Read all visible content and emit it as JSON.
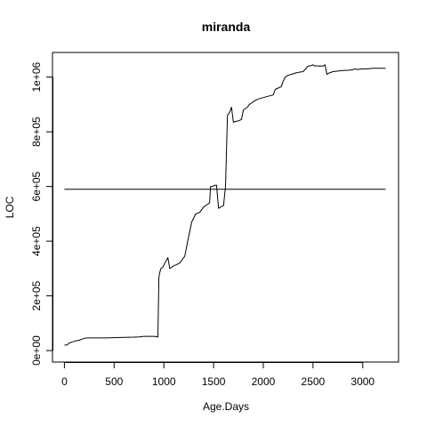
{
  "chart_data": {
    "type": "line",
    "title": "miranda",
    "xlabel": "Age.Days",
    "ylabel": "LOC",
    "xlim": [
      -120,
      3360
    ],
    "ylim": [
      -42000,
      1090000
    ],
    "xticks": [
      0,
      500,
      1000,
      1500,
      2000,
      2500,
      3000
    ],
    "xtick_labels": [
      "0",
      "500",
      "1000",
      "1500",
      "2000",
      "2500",
      "3000"
    ],
    "yticks": [
      0,
      200000,
      400000,
      600000,
      800000,
      1000000
    ],
    "ytick_labels": [
      "0e+00",
      "2e+05",
      "4e+05",
      "6e+05",
      "8e+05",
      "1e+06"
    ],
    "grid": false,
    "series": [
      {
        "x": [
          0,
          25,
          50,
          80,
          110,
          150,
          180,
          200,
          230,
          270,
          320,
          400,
          500,
          600,
          700,
          750,
          800,
          830,
          870,
          900,
          940,
          950,
          955,
          970,
          990,
          1010,
          1040,
          1060,
          1080,
          1100,
          1130,
          1160,
          1190,
          1210,
          1240,
          1280,
          1320,
          1360,
          1400,
          1440,
          1460,
          1470,
          1490,
          1510,
          1530,
          1550,
          1570,
          1600,
          1620,
          1640,
          1660,
          1680,
          1700,
          1720,
          1750,
          1780,
          1800,
          1820,
          1840,
          1860,
          1880,
          1900,
          1920,
          1950,
          2000,
          2050,
          2100,
          2120,
          2150,
          2180,
          2200,
          2220,
          2240,
          2260,
          2280,
          2300,
          2320,
          2350,
          2400,
          2450,
          2480,
          2500,
          2520,
          2540,
          2560,
          2580,
          2600,
          2620,
          2640,
          2660,
          2700,
          2750,
          2800,
          2850,
          2900,
          2920,
          2950,
          3000,
          3050,
          3100,
          3150,
          3200,
          3230
        ],
        "y": [
          20000,
          20000,
          28000,
          32000,
          35000,
          38000,
          42000,
          45000,
          46000,
          46000,
          46000,
          46000,
          47000,
          48000,
          49000,
          50000,
          52000,
          52000,
          52000,
          52000,
          50000,
          265000,
          280000,
          300000,
          305000,
          320000,
          340000,
          300000,
          305000,
          310000,
          315000,
          320000,
          335000,
          345000,
          400000,
          470000,
          500000,
          505000,
          525000,
          535000,
          540000,
          600000,
          600000,
          604000,
          605000,
          520000,
          525000,
          530000,
          600000,
          860000,
          870000,
          890000,
          835000,
          838000,
          840000,
          845000,
          880000,
          885000,
          890000,
          900000,
          905000,
          910000,
          915000,
          920000,
          925000,
          930000,
          935000,
          955000,
          960000,
          965000,
          985000,
          1000000,
          1005000,
          1008000,
          1010000,
          1012000,
          1015000,
          1017000,
          1020000,
          1040000,
          1042000,
          1045000,
          1040000,
          1042000,
          1040000,
          1041000,
          1040000,
          1045000,
          1010000,
          1015000,
          1020000,
          1022000,
          1024000,
          1025000,
          1027000,
          1030000,
          1028000,
          1030000,
          1030000,
          1032000,
          1032000,
          1032000,
          1032000
        ]
      },
      {
        "x": [
          0,
          3230
        ],
        "y": [
          590000,
          590000
        ]
      }
    ]
  }
}
